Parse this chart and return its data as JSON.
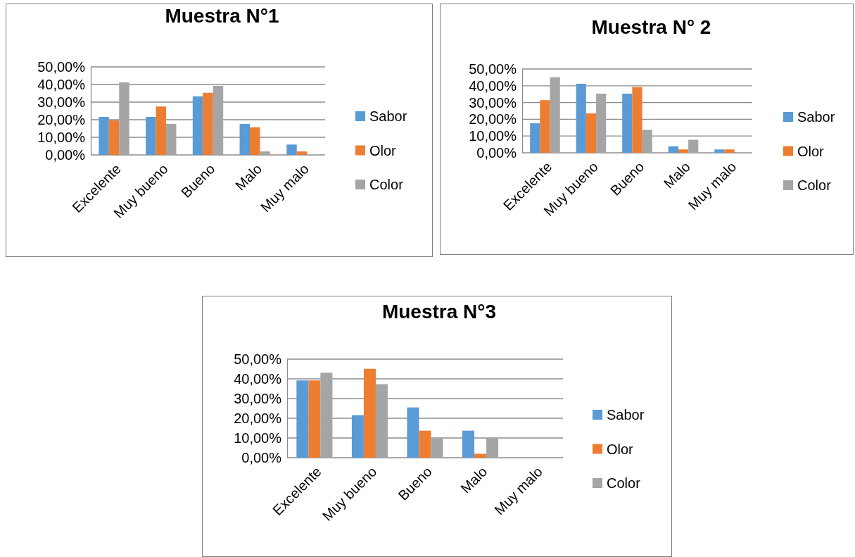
{
  "chart_data": [
    {
      "type": "bar",
      "title": "Muestra N°1",
      "categories": [
        "Excelente",
        "Muy bueno",
        "Bueno",
        "Malo",
        "Muy malo"
      ],
      "series": [
        {
          "name": "Sabor",
          "color": "#5b9bd5",
          "values": [
            21.6,
            21.6,
            33.3,
            17.6,
            5.9
          ]
        },
        {
          "name": "Olor",
          "color": "#ed7d31",
          "values": [
            19.6,
            27.5,
            35.3,
            15.7,
            2.0
          ]
        },
        {
          "name": "Color",
          "color": "#a5a5a5",
          "values": [
            41.2,
            17.6,
            39.2,
            2.0,
            0
          ]
        }
      ],
      "ylim": [
        0,
        50
      ],
      "yticks": [
        {
          "value": 0,
          "label": "0,00%"
        },
        {
          "value": 10,
          "label": "10,00%"
        },
        {
          "value": 20,
          "label": "20,00%"
        },
        {
          "value": 30,
          "label": "30,00%"
        },
        {
          "value": 40,
          "label": "40,00%"
        },
        {
          "value": 50,
          "label": "50,00%"
        }
      ],
      "grid": "y",
      "legend": "right"
    },
    {
      "type": "bar",
      "title": "Muestra N° 2",
      "categories": [
        "Excelente",
        "Muy bueno",
        "Bueno",
        "Malo",
        "Muy malo"
      ],
      "series": [
        {
          "name": "Sabor",
          "color": "#5b9bd5",
          "values": [
            17.6,
            41.2,
            35.3,
            3.9,
            2.0
          ]
        },
        {
          "name": "Olor",
          "color": "#ed7d31",
          "values": [
            31.4,
            23.5,
            39.2,
            2.0,
            2.0
          ]
        },
        {
          "name": "Color",
          "color": "#a5a5a5",
          "values": [
            45.1,
            35.3,
            13.7,
            7.8,
            0
          ]
        }
      ],
      "ylim": [
        0,
        50
      ],
      "yticks": [
        {
          "value": 0,
          "label": "0,00%"
        },
        {
          "value": 10,
          "label": "10,00%"
        },
        {
          "value": 20,
          "label": "20,00%"
        },
        {
          "value": 30,
          "label": "30,00%"
        },
        {
          "value": 40,
          "label": "40,00%"
        },
        {
          "value": 50,
          "label": "50,00%"
        }
      ],
      "grid": "y",
      "legend": "right"
    },
    {
      "type": "bar",
      "title": "Muestra N°3",
      "categories": [
        "Excelente",
        "Muy bueno",
        "Bueno",
        "Malo",
        "Muy malo"
      ],
      "series": [
        {
          "name": "Sabor",
          "color": "#5b9bd5",
          "values": [
            39.2,
            21.6,
            25.5,
            13.7,
            0
          ]
        },
        {
          "name": "Olor",
          "color": "#ed7d31",
          "values": [
            39.2,
            45.1,
            13.7,
            2.0,
            0
          ]
        },
        {
          "name": "Color",
          "color": "#a5a5a5",
          "values": [
            43.1,
            37.3,
            9.8,
            9.8,
            0
          ]
        }
      ],
      "ylim": [
        0,
        50
      ],
      "yticks": [
        {
          "value": 0,
          "label": "0,00%"
        },
        {
          "value": 10,
          "label": "10,00%"
        },
        {
          "value": 20,
          "label": "20,00%"
        },
        {
          "value": 30,
          "label": "30,00%"
        },
        {
          "value": 40,
          "label": "40,00%"
        },
        {
          "value": 50,
          "label": "50,00%"
        }
      ],
      "grid": "y",
      "legend": "right"
    }
  ]
}
